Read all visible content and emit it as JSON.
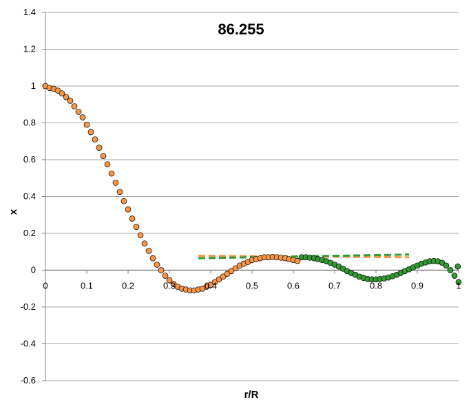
{
  "chart_data": {
    "type": "scatter",
    "title": "86.255",
    "xlabel": "r/R",
    "ylabel": "x",
    "xlim": [
      0,
      1
    ],
    "ylim": [
      -0.6,
      1.4
    ],
    "xticks": [
      0,
      0.1,
      0.2,
      0.3,
      0.4,
      0.5,
      0.6,
      0.7,
      0.8,
      0.9,
      1
    ],
    "xtick_labels": [
      "0",
      "0.1",
      "0.2",
      "0.3",
      "0.4",
      "0.5",
      "0.6",
      "0.7",
      "0.8",
      "0.9",
      "1"
    ],
    "yticks": [
      -0.6,
      -0.4,
      -0.2,
      0,
      0.2,
      0.4,
      0.6,
      0.8,
      1,
      1.2,
      1.4
    ],
    "ytick_labels": [
      "-0.6",
      "-0.4",
      "-0.2",
      "0",
      "0.2",
      "0.4",
      "0.6",
      "0.8",
      "1",
      "1.2",
      "1.4"
    ],
    "grid": true,
    "series": [
      {
        "color": "#f79646",
        "marker": "circle",
        "x": [
          0.0,
          0.01,
          0.02,
          0.03,
          0.04,
          0.05,
          0.06,
          0.07,
          0.08,
          0.09,
          0.1,
          0.11,
          0.12,
          0.13,
          0.14,
          0.15,
          0.16,
          0.17,
          0.18,
          0.19,
          0.2,
          0.21,
          0.22,
          0.23,
          0.24,
          0.25,
          0.26,
          0.27,
          0.28,
          0.29,
          0.3,
          0.31,
          0.32,
          0.33,
          0.34,
          0.35,
          0.36,
          0.37,
          0.38,
          0.39,
          0.4,
          0.41,
          0.42,
          0.43,
          0.44,
          0.45,
          0.46,
          0.47,
          0.48,
          0.49,
          0.5,
          0.51,
          0.52,
          0.53,
          0.54,
          0.55,
          0.56,
          0.57,
          0.58,
          0.59,
          0.6,
          0.61
        ],
        "y": [
          1.0,
          0.99,
          0.985,
          0.975,
          0.96,
          0.94,
          0.92,
          0.89,
          0.86,
          0.83,
          0.79,
          0.75,
          0.71,
          0.665,
          0.62,
          0.575,
          0.525,
          0.475,
          0.425,
          0.375,
          0.33,
          0.28,
          0.235,
          0.19,
          0.145,
          0.105,
          0.065,
          0.03,
          0.0,
          -0.03,
          -0.055,
          -0.075,
          -0.09,
          -0.1,
          -0.105,
          -0.11,
          -0.11,
          -0.105,
          -0.1,
          -0.09,
          -0.08,
          -0.065,
          -0.05,
          -0.035,
          -0.02,
          -0.005,
          0.01,
          0.025,
          0.035,
          0.045,
          0.055,
          0.06,
          0.065,
          0.07,
          0.07,
          0.072,
          0.07,
          0.068,
          0.065,
          0.06,
          0.055,
          0.05
        ]
      },
      {
        "color": "#339933",
        "marker": "circle",
        "x": [
          0.62,
          0.63,
          0.64,
          0.65,
          0.66,
          0.67,
          0.68,
          0.69,
          0.7,
          0.71,
          0.72,
          0.73,
          0.74,
          0.75,
          0.76,
          0.77,
          0.78,
          0.79,
          0.8,
          0.81,
          0.82,
          0.83,
          0.84,
          0.85,
          0.86,
          0.87,
          0.88,
          0.89,
          0.9,
          0.91,
          0.92,
          0.93,
          0.94,
          0.95,
          0.96,
          0.97,
          0.98,
          0.99,
          1.0
        ],
        "y": [
          0.07,
          0.07,
          0.068,
          0.065,
          0.06,
          0.055,
          0.048,
          0.04,
          0.03,
          0.02,
          0.008,
          -0.005,
          -0.015,
          -0.025,
          -0.035,
          -0.042,
          -0.048,
          -0.05,
          -0.05,
          -0.048,
          -0.045,
          -0.04,
          -0.033,
          -0.025,
          -0.015,
          -0.005,
          0.005,
          0.015,
          0.025,
          0.035,
          0.042,
          0.048,
          0.05,
          0.048,
          0.04,
          0.025,
          0.0,
          -0.03,
          -0.065
        ]
      }
    ],
    "extra_points": [
      {
        "x": 0.998,
        "y": 0.02,
        "color": "#339933"
      }
    ],
    "reference_lines": [
      {
        "color": "#f79646",
        "dash": true,
        "x": [
          0.37,
          0.88
        ],
        "y": [
          0.078,
          0.07
        ]
      },
      {
        "color": "#339933",
        "dash": true,
        "x": [
          0.37,
          0.88
        ],
        "y": [
          0.065,
          0.085
        ]
      }
    ]
  }
}
